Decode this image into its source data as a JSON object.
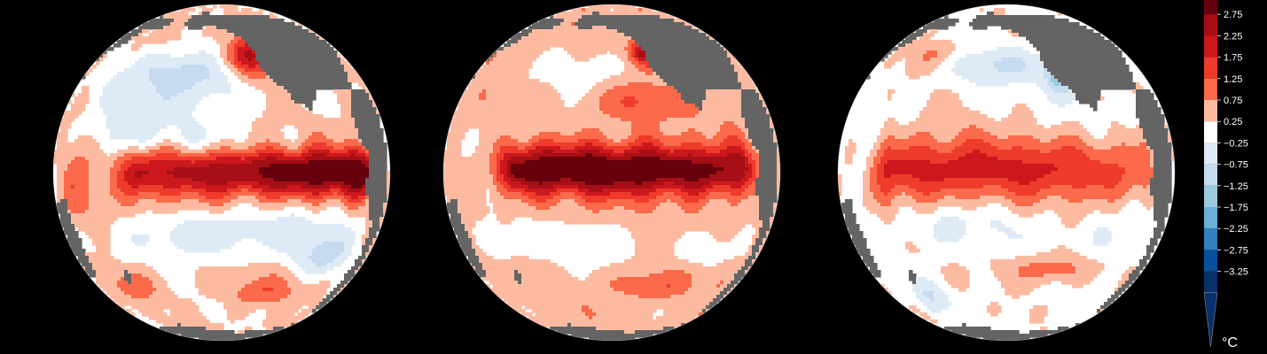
{
  "globes": [
    {
      "id": "globe-1",
      "background_anomaly": 0.3,
      "blobs": [
        {
          "lon": -150,
          "lat": 38,
          "rx": 30,
          "ry": 10,
          "v": -1.0
        },
        {
          "lon": -160,
          "lat": 30,
          "rx": 40,
          "ry": 14,
          "v": -0.6
        },
        {
          "lon": -130,
          "lat": 42,
          "rx": 16,
          "ry": 8,
          "v": 0.9
        },
        {
          "lon": -126,
          "lat": 44,
          "rx": 10,
          "ry": 12,
          "v": 1.7
        },
        {
          "lon": -175,
          "lat": 15,
          "rx": 25,
          "ry": 8,
          "v": -0.5
        },
        {
          "lon": -110,
          "lat": -20,
          "rx": 28,
          "ry": 9,
          "v": -0.6
        },
        {
          "lon": -150,
          "lat": -22,
          "rx": 25,
          "ry": 9,
          "v": -0.9
        },
        {
          "lon": -95,
          "lat": -30,
          "rx": 15,
          "ry": 8,
          "v": -1.1
        },
        {
          "lon": -120,
          "lat": -45,
          "rx": 18,
          "ry": 7,
          "v": 0.8
        },
        {
          "lon": 160,
          "lat": -10,
          "rx": 18,
          "ry": 9,
          "v": 0.6
        },
        {
          "lon": 175,
          "lat": -42,
          "rx": 14,
          "ry": 7,
          "v": 0.8
        },
        {
          "lon": -140,
          "lat": 10,
          "rx": 40,
          "ry": 5,
          "v": -0.4
        },
        {
          "lon": -200,
          "lat": 0,
          "rx": 10,
          "ry": 10,
          "v": 0.6
        }
      ],
      "equator": {
        "lon0": -175,
        "lon1": -78,
        "peakLon": -95,
        "lat": 0,
        "halfwidth": 6,
        "amp": 3.0
      }
    },
    {
      "id": "globe-2",
      "background_anomaly": 0.5,
      "blobs": [
        {
          "lon": -150,
          "lat": 38,
          "rx": 28,
          "ry": 9,
          "v": -0.5
        },
        {
          "lon": -125,
          "lat": 45,
          "rx": 6,
          "ry": 6,
          "v": 1.8
        },
        {
          "lon": -130,
          "lat": 25,
          "rx": 15,
          "ry": 8,
          "v": 0.9
        },
        {
          "lon": -150,
          "lat": -25,
          "rx": 25,
          "ry": 10,
          "v": -0.5
        },
        {
          "lon": -100,
          "lat": -28,
          "rx": 18,
          "ry": 8,
          "v": -0.6
        },
        {
          "lon": -120,
          "lat": -42,
          "rx": 18,
          "ry": 7,
          "v": 0.8
        },
        {
          "lon": 170,
          "lat": -25,
          "rx": 14,
          "ry": 10,
          "v": -0.5
        },
        {
          "lon": -180,
          "lat": 15,
          "rx": 25,
          "ry": 8,
          "v": -0.3
        }
      ],
      "equator": {
        "lon0": -180,
        "lon1": -85,
        "peakLon": -140,
        "lat": 1,
        "halfwidth": 6,
        "amp": 2.9
      }
    },
    {
      "id": "globe-3",
      "background_anomaly": 0.1,
      "blobs": [
        {
          "lon": -145,
          "lat": 40,
          "rx": 22,
          "ry": 8,
          "v": -0.9
        },
        {
          "lon": -118,
          "lat": 36,
          "rx": 6,
          "ry": 8,
          "v": -1.6
        },
        {
          "lon": -175,
          "lat": 45,
          "rx": 20,
          "ry": 7,
          "v": 0.6
        },
        {
          "lon": -120,
          "lat": -35,
          "rx": 20,
          "ry": 6,
          "v": 1.0
        },
        {
          "lon": -95,
          "lat": -20,
          "rx": 15,
          "ry": 10,
          "v": -0.5
        },
        {
          "lon": -160,
          "lat": -18,
          "rx": 25,
          "ry": 8,
          "v": -0.5
        },
        {
          "lon": 178,
          "lat": -48,
          "rx": 10,
          "ry": 8,
          "v": -0.8
        }
      ],
      "equator": {
        "lon0": -190,
        "lon1": -80,
        "peakLon": -165,
        "lat": 1,
        "halfwidth": 8,
        "amp": 1.9
      }
    }
  ],
  "colorbar": {
    "ticks": [
      "2.75",
      "2.25",
      "1.75",
      "1.25",
      "0.75",
      "0.25",
      "−0.25",
      "−0.75",
      "−1.25",
      "−1.75",
      "−2.25",
      "−2.75",
      "−3.25"
    ],
    "colors": [
      "#67000d",
      "#a50f15",
      "#cb181d",
      "#ef3b2c",
      "#fb6a4a",
      "#fcbba1",
      "#ffffff",
      "#deebf7",
      "#c6dbef",
      "#9ecae1",
      "#6baed6",
      "#3182bd",
      "#08519c",
      "#08306b"
    ],
    "unit": "°C"
  },
  "colors": {
    "background": "#000000",
    "land": "#646464",
    "coastline": "#cfcfcf"
  }
}
